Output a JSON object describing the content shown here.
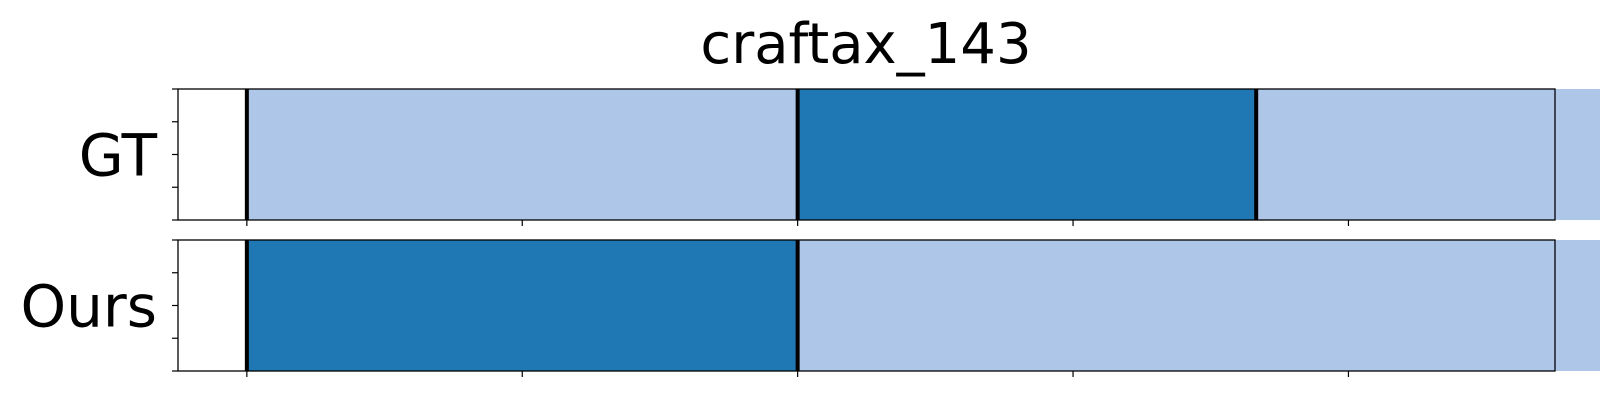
{
  "chart_data": {
    "type": "bar",
    "orientation": "horizontal-segments",
    "title": "craftax_143",
    "xlim": [
      0,
      1
    ],
    "x_ticks": [
      0.05,
      0.25,
      0.45,
      0.65,
      0.85,
      1.05
    ],
    "x_tick_labels": [],
    "y_ticks_per_row": 5,
    "grid": false,
    "legend": "none",
    "colors": {
      "light_segment": "#aec7e8",
      "dark_segment": "#1f77b4",
      "boundary": "#000000",
      "frame": "#000000"
    },
    "rows": [
      {
        "label": "GT",
        "segments": [
          {
            "start": 0.05,
            "end": 0.45,
            "color": "light"
          },
          {
            "start": 0.45,
            "end": 0.783,
            "color": "dark"
          },
          {
            "start": 0.783,
            "end": 1.05,
            "color": "light"
          }
        ],
        "boundaries": [
          0.05,
          0.45,
          0.783,
          1.05
        ]
      },
      {
        "label": "Ours",
        "segments": [
          {
            "start": 0.05,
            "end": 0.45,
            "color": "dark"
          },
          {
            "start": 0.45,
            "end": 1.05,
            "color": "light"
          }
        ],
        "boundaries": [
          0.05,
          0.45,
          1.05
        ]
      }
    ]
  }
}
